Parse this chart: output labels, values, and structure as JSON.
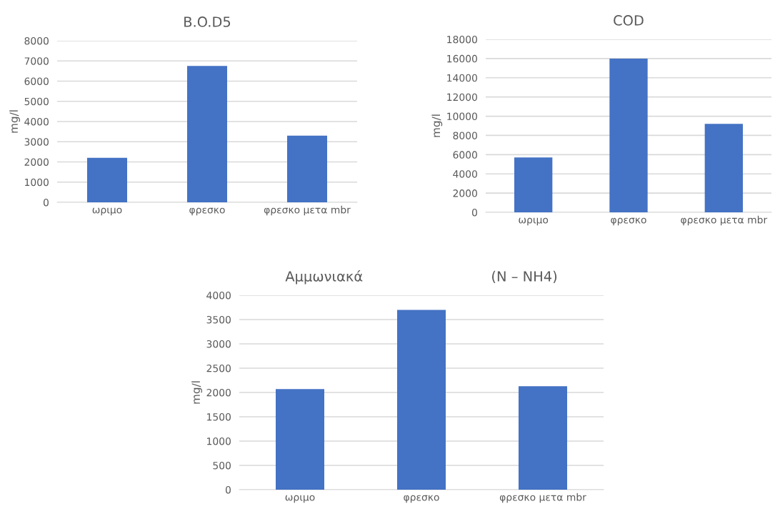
{
  "chart_data": [
    {
      "type": "bar",
      "title": "B.O.D5",
      "ylabel": "mg/l",
      "categories": [
        "ωριμο",
        "φρεσκο",
        "φρεσκο μετα mbr"
      ],
      "values": [
        2200,
        6750,
        3300
      ],
      "color": "#4472c4",
      "ylim": [
        0,
        8000
      ],
      "yticks": [
        0,
        1000,
        2000,
        3000,
        4000,
        5000,
        6000,
        7000,
        8000
      ],
      "grid": "y"
    },
    {
      "type": "bar",
      "title": "COD",
      "ylabel": "mg/l",
      "categories": [
        "ωριμο",
        "φρεσκο",
        "φρεσκο μετα mbr"
      ],
      "values": [
        5700,
        16000,
        9200
      ],
      "color": "#4472c4",
      "ylim": [
        0,
        18000
      ],
      "yticks": [
        0,
        2000,
        4000,
        6000,
        8000,
        10000,
        12000,
        14000,
        16000,
        18000
      ],
      "grid": "y"
    },
    {
      "type": "bar",
      "title": "Αμμωνιακά                             (N – NH4)",
      "ylabel": "mg/l",
      "categories": [
        "ωριμο",
        "φρεσκο",
        "φρεσκο μετα mbr"
      ],
      "values": [
        2070,
        3700,
        2130
      ],
      "color": "#4472c4",
      "ylim": [
        0,
        4000
      ],
      "yticks": [
        0,
        500,
        1000,
        1500,
        2000,
        2500,
        3000,
        3500,
        4000
      ],
      "grid": "y"
    }
  ]
}
